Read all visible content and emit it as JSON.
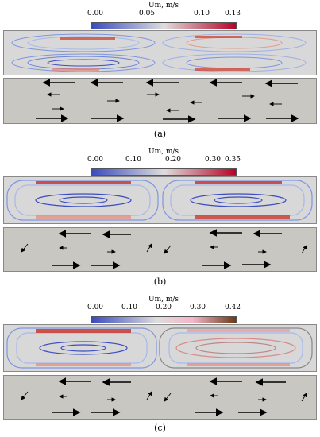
{
  "panels": [
    {
      "id": "a",
      "colorbar": {
        "title": "Um, m/s",
        "ticks": [
          "0.00",
          "0.05",
          "0.10",
          "0.13"
        ],
        "tick_values": [
          0.0,
          0.05,
          0.1,
          0.13
        ],
        "range": [
          0.0,
          0.13
        ],
        "colors": [
          "#3b4cc0",
          "#dddddd",
          "#b40426"
        ]
      },
      "caption": "(a)"
    },
    {
      "id": "b",
      "colorbar": {
        "title": "Um, m/s",
        "ticks": [
          "0.00",
          "0.10",
          "0.20",
          "0.30",
          "0.35"
        ],
        "tick_values": [
          0.0,
          0.1,
          0.2,
          0.3,
          0.35
        ],
        "range": [
          0.0,
          0.35
        ],
        "colors": [
          "#3b4cc0",
          "#dddddd",
          "#b40426"
        ]
      },
      "caption": "(b)"
    },
    {
      "id": "c",
      "colorbar": {
        "title": "Um, m/s",
        "ticks": [
          "0.00",
          "0.10",
          "0.20",
          "0.30",
          "0.42"
        ],
        "tick_values": [
          0.0,
          0.1,
          0.2,
          0.3,
          0.42
        ],
        "range": [
          0.0,
          0.42
        ],
        "colors": [
          "#3b4cc0",
          "#dddddd",
          "#f4b6c8",
          "#6b3a14"
        ]
      },
      "caption": "(c)"
    }
  ]
}
